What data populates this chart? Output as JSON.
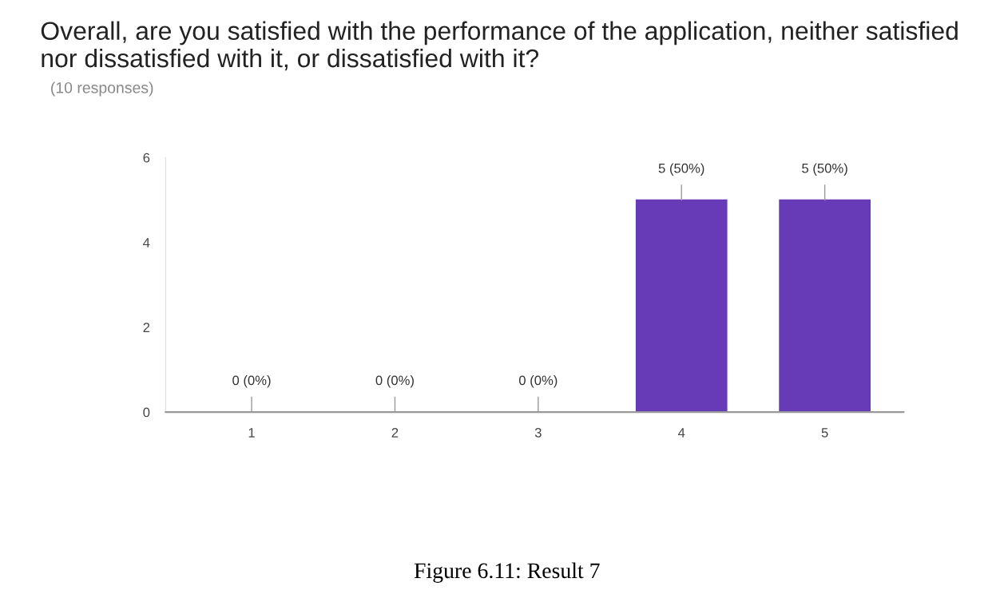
{
  "chart_data": {
    "type": "bar",
    "title": "Overall, are you satisfied with the performance of the application, neither satisfied nor dissatisfied with it, or dissatisfied with it?",
    "subtitle": "(10 responses)",
    "categories": [
      "1",
      "2",
      "3",
      "4",
      "5"
    ],
    "values": [
      0,
      0,
      0,
      5,
      5
    ],
    "value_labels": [
      "0 (0%)",
      "0 (0%)",
      "0 (0%)",
      "5 (50%)",
      "5 (50%)"
    ],
    "color": "#673ab7",
    "ylim": [
      0,
      6
    ],
    "yticks": [
      0,
      2,
      4,
      6
    ],
    "grid": false,
    "legend": false,
    "annotations": [
      "Figure 6.11: Result 7"
    ]
  }
}
